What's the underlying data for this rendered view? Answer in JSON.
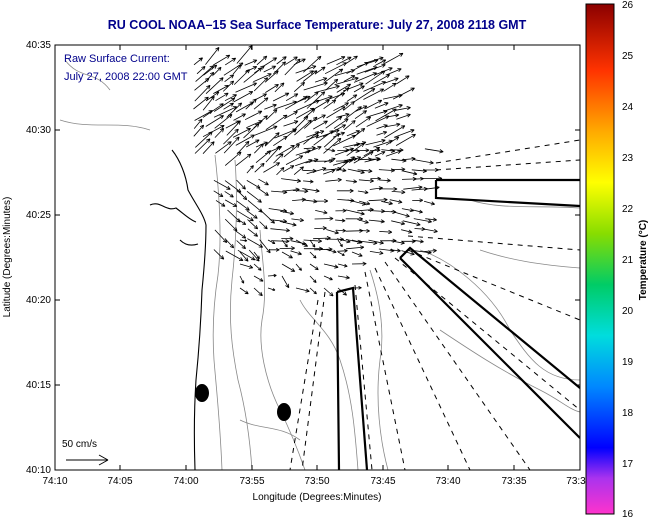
{
  "title": "RU COOL  NOAA–15  Sea Surface Temperature:  July 27, 2008 2118 GMT",
  "annotation": {
    "line1": "Raw Surface Current:",
    "line2": "July 27, 2008 22:00 GMT"
  },
  "x_axis": {
    "label": "Longitude (Degrees:Minutes)",
    "ticks": [
      "74:10",
      "74:05",
      "74:00",
      "73:55",
      "73:50",
      "73:45",
      "73:40",
      "73:35",
      "73:3"
    ]
  },
  "y_axis": {
    "label": "Latitude (Degrees:Minutes)",
    "ticks": [
      "40:35",
      "40:30",
      "40:25",
      "40:20",
      "40:15",
      "40:10"
    ]
  },
  "scale_label": "50 cm/s",
  "colorbar": {
    "label": "Temperature (°C)",
    "ticks": [
      "26",
      "25",
      "24",
      "23",
      "22",
      "21",
      "20",
      "19",
      "18",
      "17",
      "16"
    ],
    "min": 16,
    "max": 26
  },
  "chart_data": {
    "type": "quiver_map",
    "x_range_minutes": [
      0,
      37
    ],
    "y_range_minutes": [
      0,
      25
    ],
    "colors": {
      "title": "#00008b",
      "axis": "#000000",
      "contour": "#777777"
    }
  }
}
